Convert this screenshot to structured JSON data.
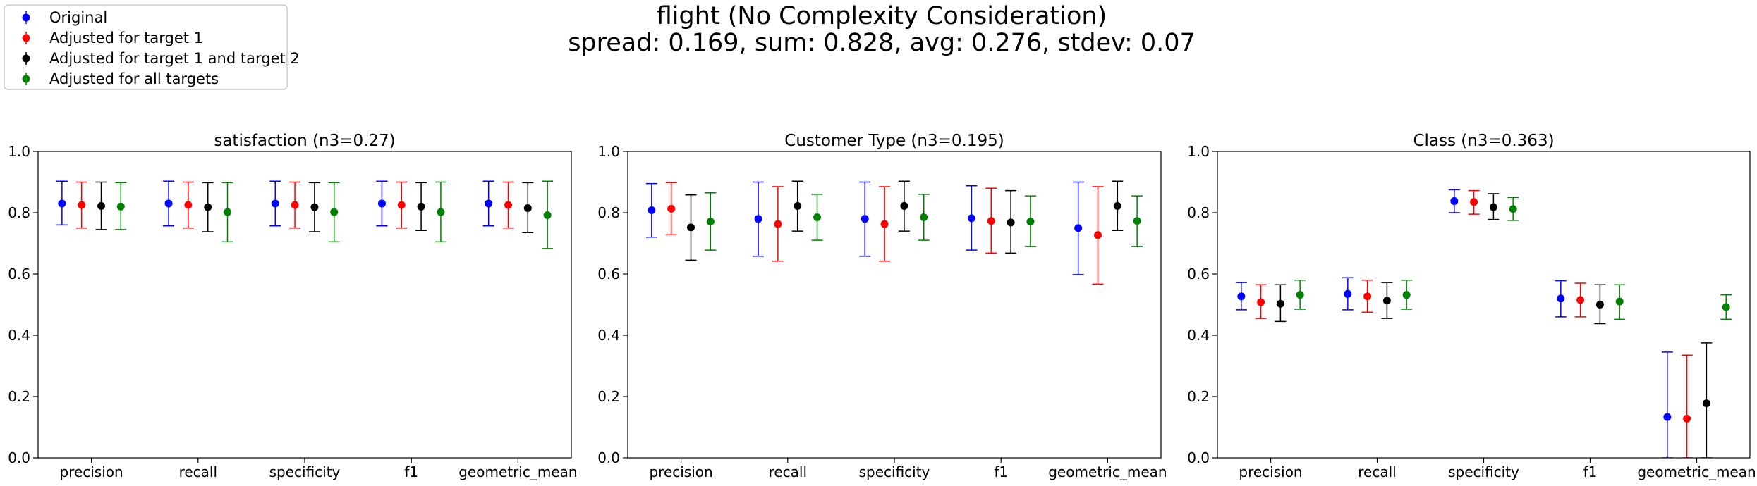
{
  "suptitle": {
    "line1": "flight (No Complexity Consideration)",
    "line2": "spread: 0.169, sum: 0.828, avg: 0.276, stdev: 0.07"
  },
  "legend": {
    "placement": "top-left",
    "entries": [
      {
        "label": "Original",
        "color": "#0000ff"
      },
      {
        "label": "Adjusted for target 1",
        "color": "#ff0000"
      },
      {
        "label": "Adjusted for target 1 and target 2",
        "color": "#000000"
      },
      {
        "label": "Adjusted for all targets",
        "color": "#008000"
      }
    ]
  },
  "chart_data": [
    {
      "type": "scatter",
      "title": "satisfaction (n3=0.27)",
      "categories": [
        "precision",
        "recall",
        "specificity",
        "f1",
        "geometric_mean"
      ],
      "ylim": [
        0,
        1
      ],
      "yticks": [
        "0.0",
        "0.2",
        "0.4",
        "0.6",
        "0.8",
        "1.0"
      ],
      "grid": false,
      "series": [
        {
          "name": "Original",
          "color": "#0000ff",
          "values": [
            0.83,
            0.83,
            0.83,
            0.83,
            0.83
          ],
          "err_low": [
            0.76,
            0.757,
            0.757,
            0.757,
            0.757
          ],
          "err_high": [
            0.903,
            0.903,
            0.903,
            0.903,
            0.903
          ]
        },
        {
          "name": "Adjusted for target 1",
          "color": "#ff0000",
          "values": [
            0.825,
            0.825,
            0.825,
            0.825,
            0.825
          ],
          "err_low": [
            0.75,
            0.75,
            0.75,
            0.75,
            0.75
          ],
          "err_high": [
            0.9,
            0.9,
            0.9,
            0.9,
            0.9
          ]
        },
        {
          "name": "Adjusted for target 1 and target 2",
          "color": "#000000",
          "values": [
            0.822,
            0.818,
            0.818,
            0.82,
            0.815
          ],
          "err_low": [
            0.745,
            0.738,
            0.738,
            0.742,
            0.735
          ],
          "err_high": [
            0.9,
            0.898,
            0.898,
            0.898,
            0.898
          ]
        },
        {
          "name": "Adjusted for all targets",
          "color": "#008000",
          "values": [
            0.82,
            0.802,
            0.802,
            0.802,
            0.792
          ],
          "err_low": [
            0.745,
            0.705,
            0.705,
            0.705,
            0.683
          ],
          "err_high": [
            0.898,
            0.898,
            0.898,
            0.9,
            0.903
          ]
        }
      ]
    },
    {
      "type": "scatter",
      "title": "Customer Type (n3=0.195)",
      "categories": [
        "precision",
        "recall",
        "specificity",
        "f1",
        "geometric_mean"
      ],
      "ylim": [
        0,
        1
      ],
      "yticks": [
        "0.0",
        "0.2",
        "0.4",
        "0.6",
        "0.8",
        "1.0"
      ],
      "grid": false,
      "series": [
        {
          "name": "Original",
          "color": "#0000ff",
          "values": [
            0.808,
            0.78,
            0.78,
            0.782,
            0.75
          ],
          "err_low": [
            0.72,
            0.658,
            0.658,
            0.678,
            0.598
          ],
          "err_high": [
            0.895,
            0.9,
            0.9,
            0.888,
            0.9
          ]
        },
        {
          "name": "Adjusted for target 1",
          "color": "#ff0000",
          "values": [
            0.813,
            0.763,
            0.763,
            0.773,
            0.727
          ],
          "err_low": [
            0.728,
            0.642,
            0.642,
            0.668,
            0.567
          ],
          "err_high": [
            0.898,
            0.885,
            0.885,
            0.88,
            0.885
          ]
        },
        {
          "name": "Adjusted for target 1 and target 2",
          "color": "#000000",
          "values": [
            0.752,
            0.822,
            0.822,
            0.768,
            0.822
          ],
          "err_low": [
            0.645,
            0.74,
            0.74,
            0.668,
            0.742
          ],
          "err_high": [
            0.858,
            0.903,
            0.903,
            0.872,
            0.903
          ]
        },
        {
          "name": "Adjusted for all targets",
          "color": "#008000",
          "values": [
            0.771,
            0.785,
            0.785,
            0.771,
            0.773
          ],
          "err_low": [
            0.678,
            0.71,
            0.71,
            0.69,
            0.69
          ],
          "err_high": [
            0.865,
            0.86,
            0.86,
            0.855,
            0.855
          ]
        }
      ]
    },
    {
      "type": "scatter",
      "title": "Class (n3=0.363)",
      "categories": [
        "precision",
        "recall",
        "specificity",
        "f1",
        "geometric_mean"
      ],
      "ylim": [
        0,
        1
      ],
      "yticks": [
        "0.0",
        "0.2",
        "0.4",
        "0.6",
        "0.8",
        "1.0"
      ],
      "grid": false,
      "series": [
        {
          "name": "Original",
          "color": "#0000ff",
          "values": [
            0.527,
            0.535,
            0.838,
            0.52,
            0.133
          ],
          "err_low": [
            0.483,
            0.483,
            0.8,
            0.46,
            0.0
          ],
          "err_high": [
            0.572,
            0.588,
            0.875,
            0.578,
            0.345
          ]
        },
        {
          "name": "Adjusted for target 1",
          "color": "#ff0000",
          "values": [
            0.508,
            0.527,
            0.835,
            0.515,
            0.128
          ],
          "err_low": [
            0.455,
            0.475,
            0.795,
            0.46,
            0.0
          ],
          "err_high": [
            0.565,
            0.58,
            0.872,
            0.57,
            0.335
          ]
        },
        {
          "name": "Adjusted for target 1 and target 2",
          "color": "#000000",
          "values": [
            0.503,
            0.513,
            0.818,
            0.5,
            0.178
          ],
          "err_low": [
            0.445,
            0.455,
            0.778,
            0.438,
            0.0
          ],
          "err_high": [
            0.565,
            0.572,
            0.862,
            0.565,
            0.375
          ]
        },
        {
          "name": "Adjusted for all targets",
          "color": "#008000",
          "values": [
            0.532,
            0.532,
            0.812,
            0.51,
            0.492
          ],
          "err_low": [
            0.485,
            0.485,
            0.775,
            0.452,
            0.452
          ],
          "err_high": [
            0.58,
            0.58,
            0.85,
            0.565,
            0.532
          ]
        }
      ]
    }
  ]
}
